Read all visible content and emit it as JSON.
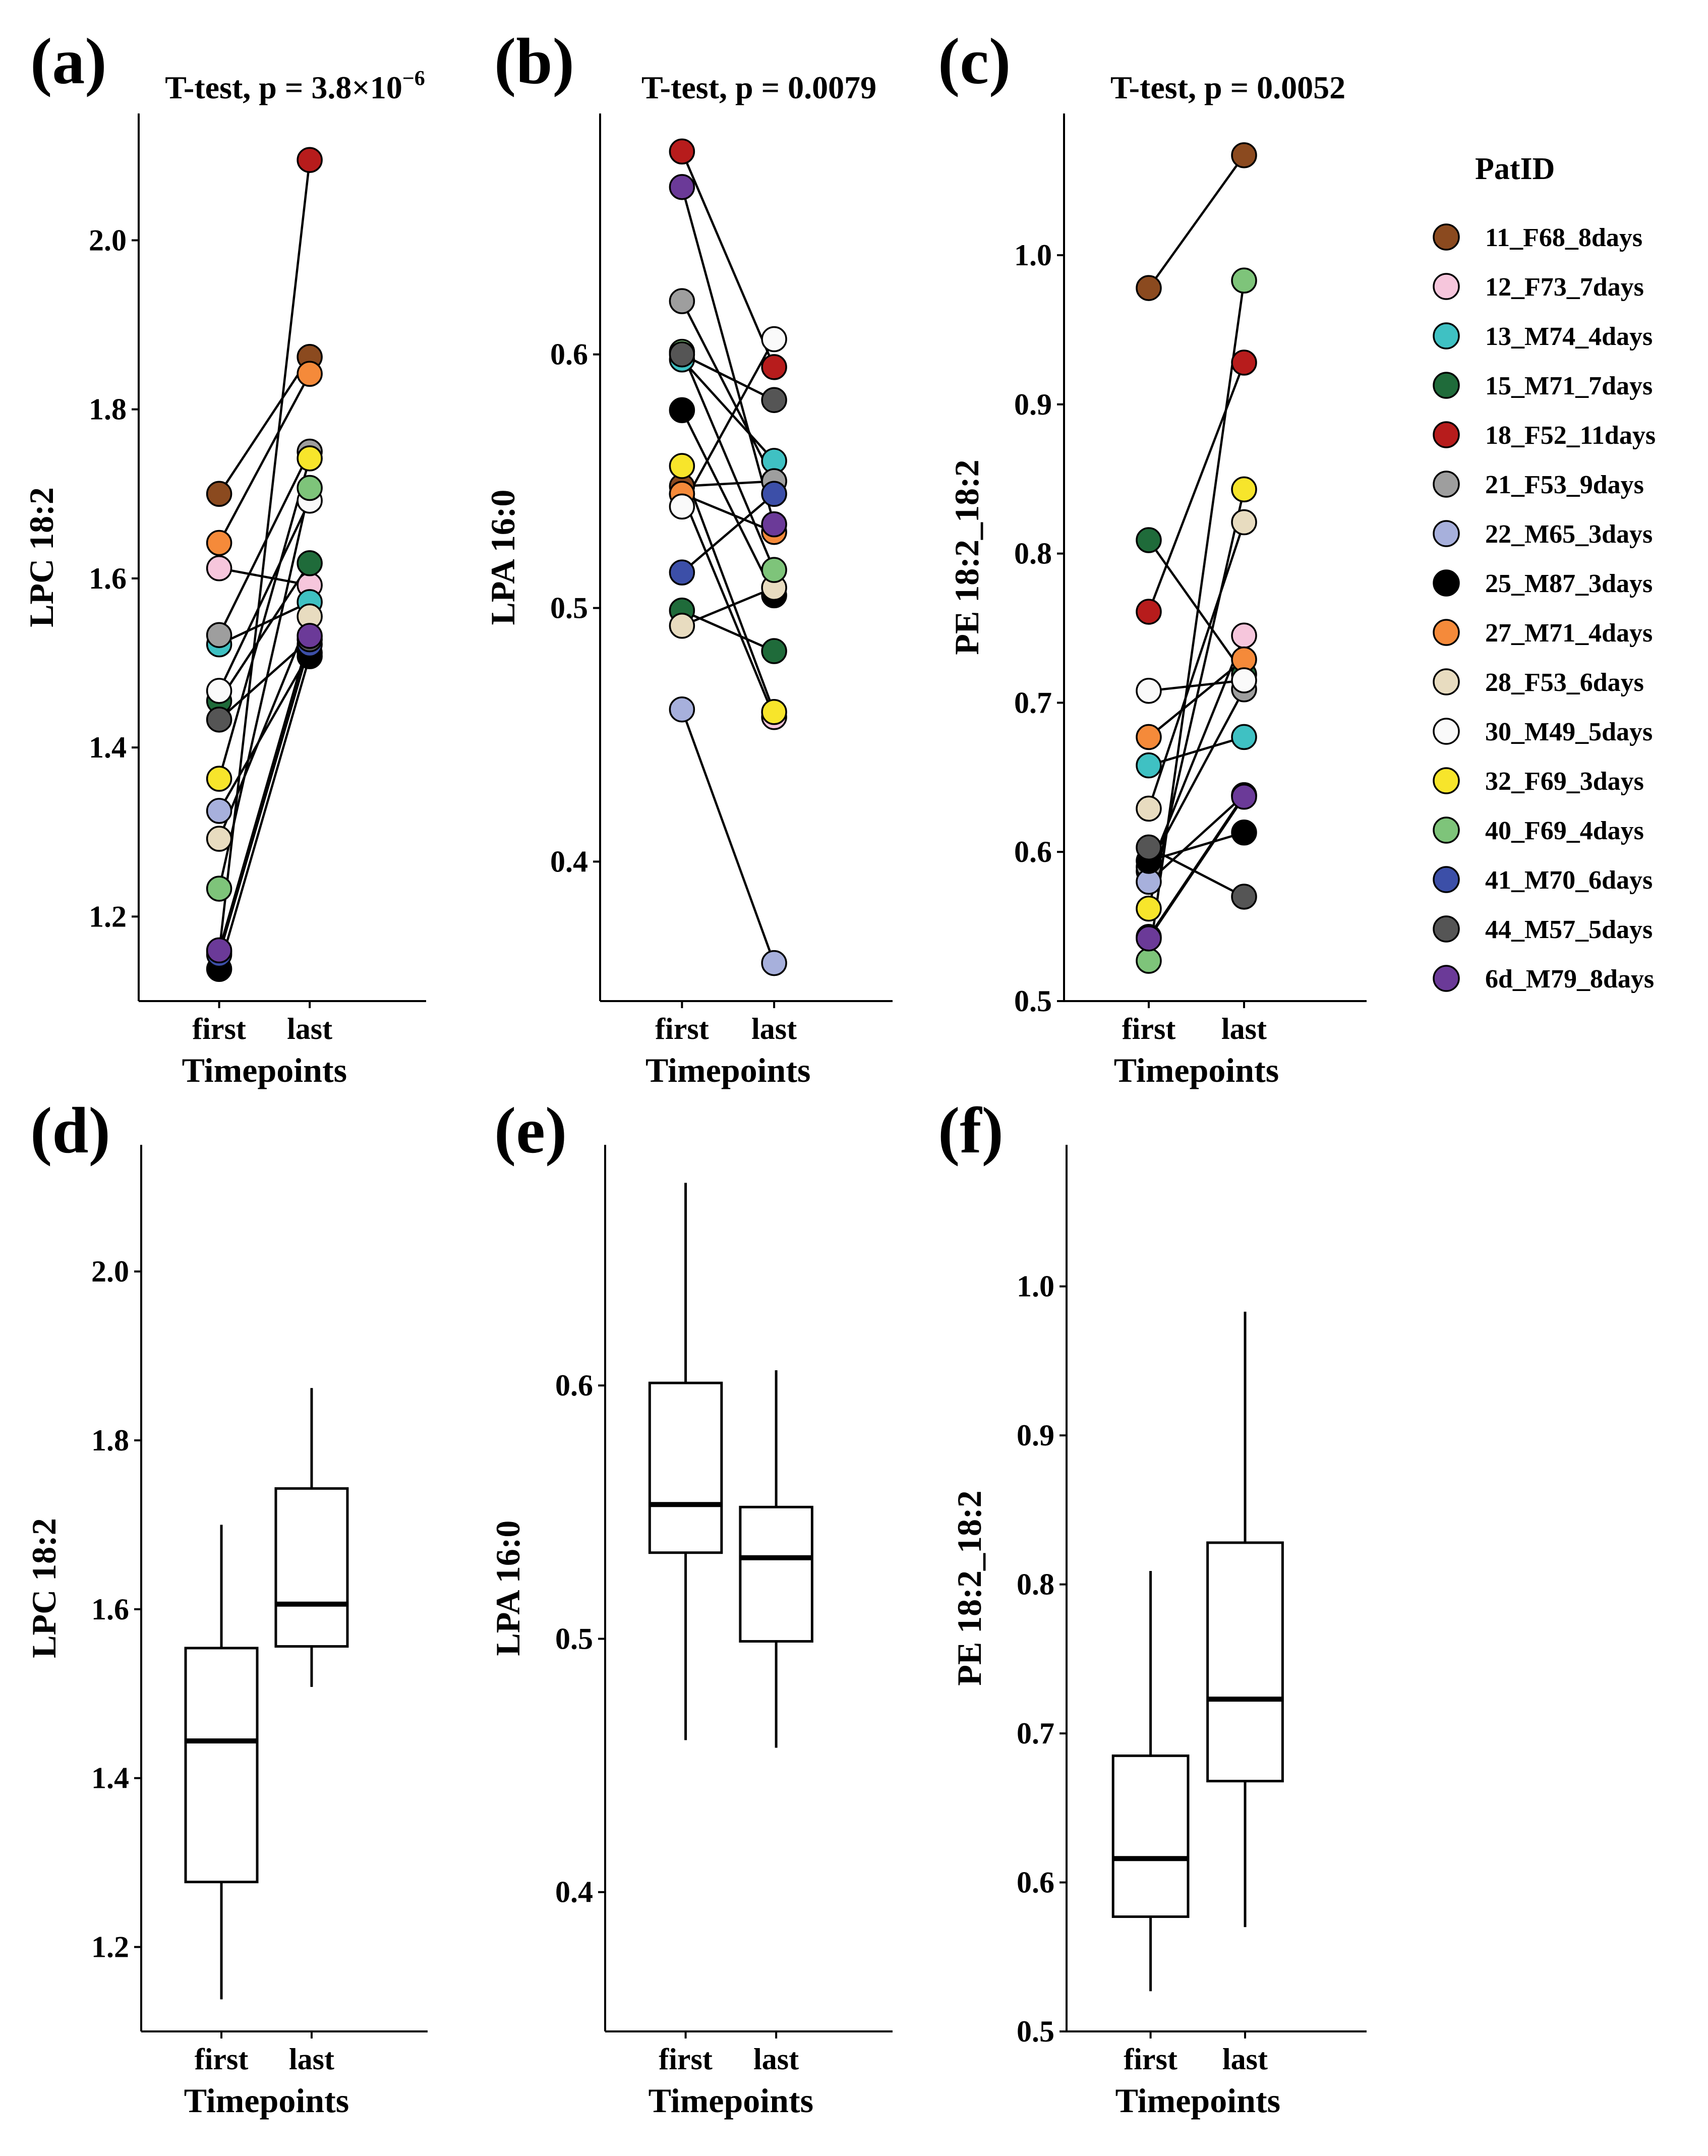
{
  "figure_title": "Paired lipid measurements: first vs last timepoint",
  "legend": {
    "title": "PatID",
    "entries": [
      {
        "id": "11_F68_8days",
        "color": "#8B4A1F"
      },
      {
        "id": "12_F73_7days",
        "color": "#F6C6DC"
      },
      {
        "id": "13_M74_4days",
        "color": "#3FC1C3"
      },
      {
        "id": "15_M71_7days",
        "color": "#1F6B3A"
      },
      {
        "id": "18_F52_11days",
        "color": "#B71C1C"
      },
      {
        "id": "21_F53_9days",
        "color": "#9E9E9E"
      },
      {
        "id": "22_M65_3days",
        "color": "#A7B0DC"
      },
      {
        "id": "25_M87_3days",
        "color": "#000000"
      },
      {
        "id": "27_M71_4days",
        "color": "#F58A3A"
      },
      {
        "id": "28_F53_6days",
        "color": "#E8DCC0"
      },
      {
        "id": "30_M49_5days",
        "color": "#FAFAFA"
      },
      {
        "id": "32_F69_3days",
        "color": "#F7E52B"
      },
      {
        "id": "40_F69_4days",
        "color": "#7EC47A"
      },
      {
        "id": "41_M70_6days",
        "color": "#3C4FA8"
      },
      {
        "id": "44_M57_5days",
        "color": "#555555"
      },
      {
        "id": "6d_M79_8days",
        "color": "#6B3A98"
      }
    ]
  },
  "chart_data": [
    {
      "panel": "(a)",
      "type": "scatter",
      "title": "T-test, p = 3.8×10",
      "title_superscript": "−6",
      "xlabel": "Timepoints",
      "ylabel": "LPC 18:2",
      "ylim": [
        1.1,
        2.15
      ],
      "categories": [
        "first",
        "last"
      ],
      "yticks": [
        {
          "value": 1.2,
          "label": "1.2"
        },
        {
          "value": 1.4,
          "label": "1.4"
        },
        {
          "value": 1.6,
          "label": "1.6"
        },
        {
          "value": 1.8,
          "label": "1.8"
        },
        {
          "value": 2.0,
          "label": "2.0"
        }
      ],
      "series": [
        {
          "name": "11_F68_8days",
          "first": 1.7,
          "last": 1.862
        },
        {
          "name": "12_F73_7days",
          "first": 1.612,
          "last": 1.592
        },
        {
          "name": "13_M74_4days",
          "first": 1.522,
          "last": 1.572
        },
        {
          "name": "15_M71_7days",
          "first": 1.455,
          "last": 1.618
        },
        {
          "name": "18_F52_11days",
          "first": 1.158,
          "last": 2.095
        },
        {
          "name": "21_F53_9days",
          "first": 1.533,
          "last": 1.75
        },
        {
          "name": "22_M65_3days",
          "first": 1.325,
          "last": 1.512
        },
        {
          "name": "25_M87_3days",
          "first": 1.138,
          "last": 1.508
        },
        {
          "name": "27_M71_4days",
          "first": 1.642,
          "last": 1.842
        },
        {
          "name": "28_F53_6days",
          "first": 1.292,
          "last": 1.555
        },
        {
          "name": "30_M49_5days",
          "first": 1.467,
          "last": 1.692
        },
        {
          "name": "32_F69_3days",
          "first": 1.363,
          "last": 1.742
        },
        {
          "name": "40_F69_4days",
          "first": 1.233,
          "last": 1.707
        },
        {
          "name": "41_M70_6days",
          "first": 1.155,
          "last": 1.522
        },
        {
          "name": "44_M57_5days",
          "first": 1.433,
          "last": 1.528
        },
        {
          "name": "6d_M79_8days",
          "first": 1.16,
          "last": 1.532
        }
      ]
    },
    {
      "panel": "(b)",
      "type": "scatter",
      "title": "T-test, p = 0.0079",
      "title_superscript": "",
      "xlabel": "Timepoints",
      "ylabel": "LPA 16:0",
      "ylim": [
        0.345,
        0.695
      ],
      "categories": [
        "first",
        "last"
      ],
      "yticks": [
        {
          "value": 0.4,
          "label": "0.4"
        },
        {
          "value": 0.5,
          "label": "0.5"
        },
        {
          "value": 0.6,
          "label": "0.6"
        }
      ],
      "series": [
        {
          "name": "11_F68_8days",
          "first": 0.548,
          "last": 0.55
        },
        {
          "name": "12_F73_7days",
          "first": 0.545,
          "last": 0.457
        },
        {
          "name": "13_M74_4days",
          "first": 0.598,
          "last": 0.558
        },
        {
          "name": "15_M71_7days",
          "first": 0.499,
          "last": 0.483
        },
        {
          "name": "18_F52_11days",
          "first": 0.68,
          "last": 0.595
        },
        {
          "name": "21_F53_9days",
          "first": 0.621,
          "last": 0.55
        },
        {
          "name": "22_M65_3days",
          "first": 0.46,
          "last": 0.36
        },
        {
          "name": "25_M87_3days",
          "first": 0.578,
          "last": 0.505
        },
        {
          "name": "27_M71_4days",
          "first": 0.545,
          "last": 0.53
        },
        {
          "name": "28_F53_6days",
          "first": 0.493,
          "last": 0.508
        },
        {
          "name": "30_M49_5days",
          "first": 0.54,
          "last": 0.606
        },
        {
          "name": "32_F69_3days",
          "first": 0.556,
          "last": 0.459
        },
        {
          "name": "40_F69_4days",
          "first": 0.601,
          "last": 0.515
        },
        {
          "name": "41_M70_6days",
          "first": 0.514,
          "last": 0.545
        },
        {
          "name": "44_M57_5days",
          "first": 0.6,
          "last": 0.582
        },
        {
          "name": "6d_M79_8days",
          "first": 0.666,
          "last": 0.533
        }
      ]
    },
    {
      "panel": "(c)",
      "type": "scatter",
      "title": "T-test, p = 0.0052",
      "title_superscript": "",
      "xlabel": "Timepoints",
      "ylabel": "PE 18:2_18:2",
      "ylim": [
        0.5,
        1.095
      ],
      "categories": [
        "first",
        "last"
      ],
      "yticks": [
        {
          "value": 0.5,
          "label": "0.5"
        },
        {
          "value": 0.6,
          "label": "0.6"
        },
        {
          "value": 0.7,
          "label": "0.7"
        },
        {
          "value": 0.8,
          "label": "0.8"
        },
        {
          "value": 0.9,
          "label": "0.9"
        },
        {
          "value": 1.0,
          "label": "1.0"
        }
      ],
      "series": [
        {
          "name": "11_F68_8days",
          "first": 0.978,
          "last": 1.067
        },
        {
          "name": "12_F73_7days",
          "first": 0.587,
          "last": 0.745
        },
        {
          "name": "13_M74_4days",
          "first": 0.658,
          "last": 0.677
        },
        {
          "name": "15_M71_7days",
          "first": 0.809,
          "last": 0.719
        },
        {
          "name": "18_F52_11days",
          "first": 0.761,
          "last": 0.928
        },
        {
          "name": "21_F53_9days",
          "first": 0.59,
          "last": 0.709
        },
        {
          "name": "22_M65_3days",
          "first": 0.58,
          "last": 0.638
        },
        {
          "name": "25_M87_3days",
          "first": 0.594,
          "last": 0.613
        },
        {
          "name": "27_M71_4days",
          "first": 0.677,
          "last": 0.729
        },
        {
          "name": "28_F53_6days",
          "first": 0.629,
          "last": 0.821
        },
        {
          "name": "30_M49_5days",
          "first": 0.708,
          "last": 0.715
        },
        {
          "name": "32_F69_3days",
          "first": 0.562,
          "last": 0.843
        },
        {
          "name": "40_F69_4days",
          "first": 0.527,
          "last": 0.983
        },
        {
          "name": "41_M70_6days",
          "first": 0.543,
          "last": 0.638
        },
        {
          "name": "44_M57_5days",
          "first": 0.603,
          "last": 0.57
        },
        {
          "name": "6d_M79_8days",
          "first": 0.542,
          "last": 0.637
        }
      ]
    },
    {
      "panel": "(d)",
      "type": "boxplot",
      "title": "",
      "xlabel": "Timepoints",
      "ylabel": "LPC 18:2",
      "ylim": [
        1.1,
        2.15
      ],
      "categories": [
        "first",
        "last"
      ],
      "yticks": [
        {
          "value": 1.2,
          "label": "1.2"
        },
        {
          "value": 1.4,
          "label": "1.4"
        },
        {
          "value": 1.6,
          "label": "1.6"
        },
        {
          "value": 1.8,
          "label": "1.8"
        },
        {
          "value": 2.0,
          "label": "2.0"
        }
      ],
      "boxes": [
        {
          "category": "first",
          "whisker_low": 1.138,
          "q1": 1.277,
          "median": 1.444,
          "q3": 1.554,
          "whisker_high": 1.7
        },
        {
          "category": "last",
          "whisker_low": 1.508,
          "q1": 1.556,
          "median": 1.606,
          "q3": 1.743,
          "whisker_high": 1.862
        }
      ]
    },
    {
      "panel": "(e)",
      "type": "boxplot",
      "title": "",
      "xlabel": "Timepoints",
      "ylabel": "LPA 16:0",
      "ylim": [
        0.345,
        0.695
      ],
      "categories": [
        "first",
        "last"
      ],
      "yticks": [
        {
          "value": 0.4,
          "label": "0.4"
        },
        {
          "value": 0.5,
          "label": "0.5"
        },
        {
          "value": 0.6,
          "label": "0.6"
        }
      ],
      "boxes": [
        {
          "category": "first",
          "whisker_low": 0.46,
          "q1": 0.534,
          "median": 0.553,
          "q3": 0.601,
          "whisker_high": 0.68
        },
        {
          "category": "last",
          "whisker_low": 0.457,
          "q1": 0.499,
          "median": 0.532,
          "q3": 0.552,
          "whisker_high": 0.606
        }
      ]
    },
    {
      "panel": "(f)",
      "type": "boxplot",
      "title": "",
      "xlabel": "Timepoints",
      "ylabel": "PE 18:2_18:2",
      "ylim": [
        0.5,
        1.095
      ],
      "categories": [
        "first",
        "last"
      ],
      "yticks": [
        {
          "value": 0.5,
          "label": "0.5"
        },
        {
          "value": 0.6,
          "label": "0.6"
        },
        {
          "value": 0.7,
          "label": "0.7"
        },
        {
          "value": 0.8,
          "label": "0.8"
        },
        {
          "value": 0.9,
          "label": "0.9"
        },
        {
          "value": 1.0,
          "label": "1.0"
        }
      ],
      "boxes": [
        {
          "category": "first",
          "whisker_low": 0.527,
          "q1": 0.577,
          "median": 0.616,
          "q3": 0.685,
          "whisker_high": 0.809
        },
        {
          "category": "last",
          "whisker_low": 0.57,
          "q1": 0.668,
          "median": 0.723,
          "q3": 0.828,
          "whisker_high": 0.983
        }
      ]
    }
  ]
}
